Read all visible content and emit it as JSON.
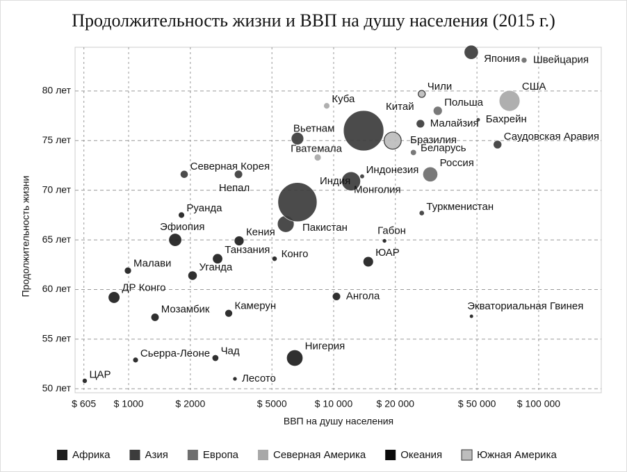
{
  "chart_data": {
    "type": "bubble",
    "title": "Продолжительность жизни и ВВП на душу населения (2015 г.)",
    "x_label": "ВВП на душу населения",
    "y_label": "Продолжительность жизни",
    "x_log": true,
    "grid": true,
    "legend": "bottom",
    "xlim": [
      548,
      202000
    ],
    "ylim": [
      49.6,
      84.4
    ],
    "xticks": [
      {
        "value": 605,
        "label": "$ 605"
      },
      {
        "value": 1000,
        "label": "$ 1000"
      },
      {
        "value": 2000,
        "label": "$ 2000"
      },
      {
        "value": 5000,
        "label": "$ 5000"
      },
      {
        "value": 10000,
        "label": "$ 10 000"
      },
      {
        "value": 20000,
        "label": "$ 20 000"
      },
      {
        "value": 50000,
        "label": "$ 50 000"
      },
      {
        "value": 100000,
        "label": "$ 100 000"
      }
    ],
    "yticks": [
      {
        "value": 50,
        "label": "50 лет"
      },
      {
        "value": 55,
        "label": "55 лет"
      },
      {
        "value": 60,
        "label": "60 лет"
      },
      {
        "value": 65,
        "label": "65 лет"
      },
      {
        "value": 70,
        "label": "70 лет"
      },
      {
        "value": 75,
        "label": "75 лет"
      },
      {
        "value": 80,
        "label": "80 лет"
      }
    ],
    "series": [
      {
        "name": "Африка",
        "color": "#1e1e1e",
        "labels": [
          "ЦАР",
          "ДР Конго",
          "Малави",
          "Мозамбик",
          "Сьерра-Леоне",
          "Руанда",
          "Эфиопия",
          "Уганда",
          "Танзания",
          "Чад",
          "Камерун",
          "Кения",
          "Лесото",
          "Конго",
          "Нигерия",
          "Ангола",
          "ЮАР",
          "Габон",
          "Экваториальная Гвинея"
        ],
        "x": [
          611,
          849,
          992,
          1345,
          1081,
          1810,
          1687,
          2050,
          2716,
          2650,
          3077,
          3459,
          3300,
          5150,
          6460,
          10320,
          14750,
          17700,
          47000
        ],
        "values": [
          50.8,
          59.2,
          61.9,
          57.2,
          52.9,
          67.5,
          65.0,
          61.4,
          63.1,
          53.1,
          57.6,
          64.9,
          51.0,
          63.1,
          53.1,
          59.3,
          62.8,
          64.9,
          57.3
        ],
        "sizes": [
          4.5,
          76,
          17,
          27,
          7,
          11,
          100,
          40,
          52,
          14,
          23,
          47,
          2,
          5,
          180,
          28,
          55,
          2,
          1.2
        ]
      },
      {
        "name": "Азия",
        "color": "#3c3c3c",
        "labels": [
          "Северная Корея",
          "Непал",
          "Пакистан",
          "Индия",
          "Вьетнам",
          "Индонезия",
          "Монголия",
          "Китай",
          "Туркменистан",
          "Малайзия",
          "Япония",
          "Бахрейн",
          "Саудовская Аравия"
        ],
        "x": [
          1867,
          3434,
          5840,
          6660,
          6660,
          12160,
          13770,
          14000,
          26900,
          26500,
          46900,
          50700,
          63000
        ],
        "values": [
          71.6,
          71.6,
          66.6,
          68.8,
          75.2,
          70.9,
          71.4,
          76.0,
          67.7,
          76.7,
          83.9,
          77.1,
          74.6
        ],
        "sizes": [
          25,
          28,
          190,
          1310,
          92,
          258,
          3,
          1400,
          5.5,
          30,
          127,
          1.4,
          31
        ]
      },
      {
        "name": "Европа",
        "color": "#6e6e6e",
        "labels": [
          "Беларусь",
          "Россия",
          "Польша",
          "Швейцария"
        ],
        "x": [
          24500,
          29600,
          32200,
          84900
        ],
        "values": [
          73.8,
          71.6,
          78.0,
          83.1
        ],
        "sizes": [
          9.5,
          144,
          38,
          8
        ]
      },
      {
        "name": "Северная Америка",
        "color": "#a8a8a8",
        "labels": [
          "Гватемала",
          "Куба",
          "США"
        ],
        "x": [
          8360,
          9250,
          72100
        ],
        "values": [
          73.3,
          78.5,
          79.0
        ],
        "sizes": [
          16,
          11,
          320
        ]
      },
      {
        "name": "Океания",
        "color": "#0a0a0a",
        "labels": [],
        "x": [],
        "values": [],
        "sizes": []
      },
      {
        "name": "Южная Америка",
        "color": "#bdbdbd",
        "labels": [
          "Бразилия",
          "Чили"
        ],
        "x": [
          19400,
          26900
        ],
        "values": [
          75.0,
          79.7
        ],
        "sizes": [
          205,
          18
        ]
      }
    ]
  }
}
